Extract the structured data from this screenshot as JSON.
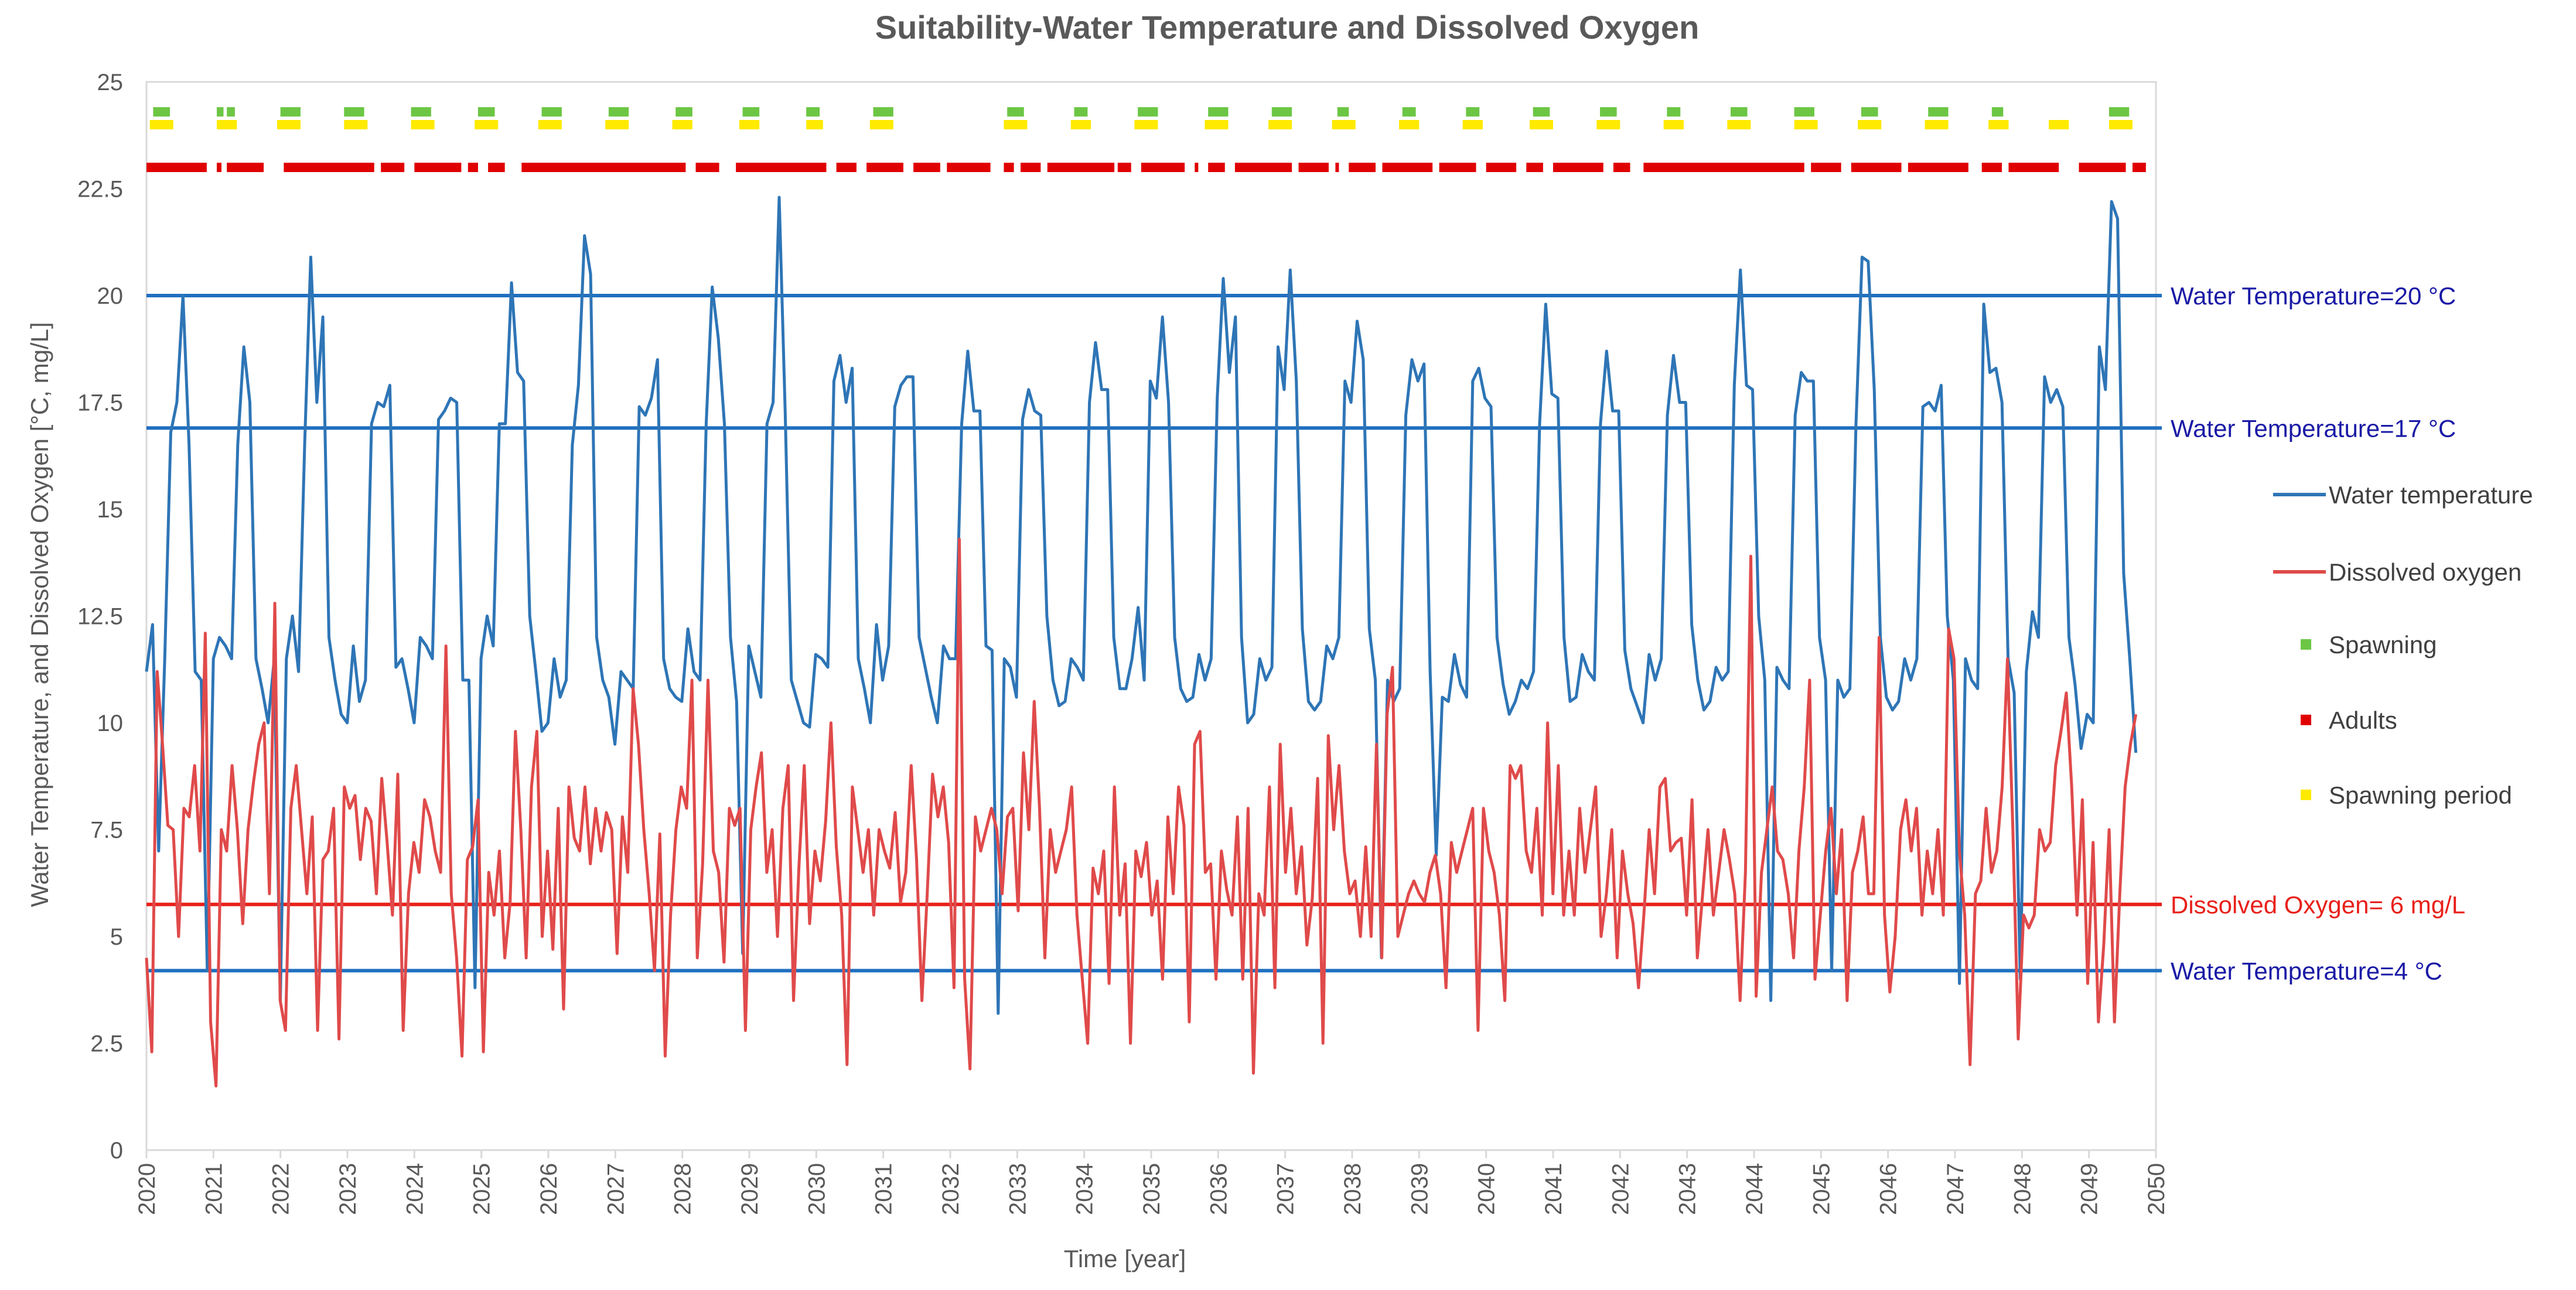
{
  "chart_data": {
    "type": "line",
    "title": "Suitability-Water Temperature and Dissolved Oxygen",
    "xlabel": "Time [year]",
    "ylabel": "Water Temperature, and Dissolved Oxygen [°C, mg/L]",
    "xlim": [
      2020,
      2050
    ],
    "ylim": [
      0,
      25
    ],
    "x_ticks": [
      "2020",
      "2021",
      "2022",
      "2023",
      "2024",
      "2025",
      "2026",
      "2027",
      "2028",
      "2029",
      "2030",
      "2031",
      "2032",
      "2033",
      "2034",
      "2035",
      "2036",
      "2037",
      "2038",
      "2039",
      "2040",
      "2041",
      "2042",
      "2043",
      "2044",
      "2045",
      "2046",
      "2047",
      "2048",
      "2049",
      "2050"
    ],
    "y_ticks": [
      "0",
      "2.5",
      "5",
      "7.5",
      "10",
      "12.5",
      "15",
      "17.5",
      "20",
      "22.5",
      "25"
    ],
    "legend": {
      "water_temperature": "Water temperature",
      "dissolved_oxygen": "Dissolved oxygen",
      "spawning": "Spawning",
      "adults": "Adults",
      "spawning_period": "Spawning period"
    },
    "reference_lines": [
      {
        "name": "Water Temperature=20 °C",
        "value": 20,
        "color": "#1F6FBF",
        "label_color": "#1A1AA6"
      },
      {
        "name": "Water Temperature=17 °C",
        "value": 16.9,
        "color": "#1F6FBF",
        "label_color": "#1A1AA6"
      },
      {
        "name": "Dissolved Oxygen= 6 mg/L",
        "value": 5.75,
        "color": "#E8201A",
        "label_color": "#E8201A"
      },
      {
        "name": "Water Temperature=4 °C",
        "value": 4.2,
        "color": "#1F6FBF",
        "label_color": "#1A1AA6"
      }
    ],
    "series": [
      {
        "name": "Water temperature",
        "color": "#2E75B6",
        "x_start": 2020,
        "x_end": 2049.7,
        "values": [
          11.2,
          12.3,
          7.0,
          11.5,
          16.8,
          17.5,
          20.0,
          16.5,
          11.2,
          11.0,
          4.2,
          11.5,
          12.0,
          11.8,
          11.5,
          16.5,
          18.8,
          17.5,
          11.5,
          10.8,
          10.0,
          11.5,
          3.5,
          11.5,
          12.5,
          11.2,
          16.5,
          20.9,
          17.5,
          19.5,
          12.0,
          11.0,
          10.2,
          10.0,
          11.8,
          10.5,
          11.0,
          17.0,
          17.5,
          17.4,
          17.9,
          11.3,
          11.5,
          10.8,
          10.0,
          12.0,
          11.8,
          11.5,
          17.1,
          17.3,
          17.6,
          17.5,
          11.0,
          11.0,
          3.8,
          11.5,
          12.5,
          11.8,
          17.0,
          17.0,
          20.3,
          18.2,
          18.0,
          12.5,
          11.2,
          9.8,
          10.0,
          11.5,
          10.6,
          11.0,
          16.5,
          17.9,
          21.4,
          20.5,
          12.0,
          11.0,
          10.6,
          9.5,
          11.2,
          11.0,
          10.8,
          17.4,
          17.2,
          17.6,
          18.5,
          11.5,
          10.8,
          10.6,
          10.5,
          12.2,
          11.2,
          11.0,
          17.0,
          20.2,
          19.0,
          17.0,
          12.0,
          10.5,
          4.6,
          11.8,
          11.2,
          10.6,
          17.0,
          17.5,
          22.3,
          17.2,
          11.0,
          10.5,
          10.0,
          9.9,
          11.6,
          11.5,
          11.3,
          18.0,
          18.6,
          17.5,
          18.3,
          11.5,
          10.8,
          10.0,
          12.3,
          11.0,
          11.8,
          17.4,
          17.9,
          18.1,
          18.1,
          12.0,
          11.3,
          10.6,
          10.0,
          11.8,
          11.5,
          11.5,
          17.0,
          18.7,
          17.3,
          17.3,
          11.8,
          11.7,
          3.2,
          11.5,
          11.3,
          10.6,
          17.1,
          17.8,
          17.3,
          17.2,
          12.5,
          11.0,
          10.4,
          10.5,
          11.5,
          11.3,
          11.0,
          17.5,
          18.9,
          17.8,
          17.8,
          12.0,
          10.8,
          10.8,
          11.5,
          12.7,
          11.0,
          18.0,
          17.6,
          19.5,
          17.5,
          12.0,
          10.8,
          10.5,
          10.6,
          11.6,
          11.0,
          11.5,
          17.6,
          20.4,
          18.2,
          19.5,
          12.0,
          10.0,
          10.2,
          11.5,
          11.0,
          11.3,
          18.8,
          17.8,
          20.6,
          18.0,
          12.2,
          10.5,
          10.3,
          10.5,
          11.8,
          11.5,
          12.0,
          18.0,
          17.5,
          19.4,
          18.5,
          12.2,
          11.0,
          4.5,
          11.0,
          10.5,
          10.8,
          17.2,
          18.5,
          18.0,
          18.4,
          11.2,
          6.9,
          10.6,
          10.5,
          11.6,
          10.9,
          10.6,
          18.0,
          18.3,
          17.6,
          17.4,
          12.0,
          10.9,
          10.2,
          10.5,
          11.0,
          10.8,
          11.2,
          17.0,
          19.8,
          17.7,
          17.6,
          12.0,
          10.5,
          10.6,
          11.6,
          11.2,
          11.0,
          17.0,
          18.7,
          17.3,
          17.3,
          11.7,
          10.8,
          10.4,
          10.0,
          11.6,
          11.0,
          11.5,
          17.2,
          18.6,
          17.5,
          17.5,
          12.3,
          11.0,
          10.3,
          10.5,
          11.3,
          11.0,
          11.2,
          17.9,
          20.6,
          17.9,
          17.8,
          12.5,
          11.0,
          3.5,
          11.3,
          11.0,
          10.8,
          17.2,
          18.2,
          18.0,
          18.0,
          12.0,
          11.0,
          4.2,
          11.0,
          10.6,
          10.8,
          17.0,
          20.9,
          20.8,
          17.8,
          12.0,
          10.6,
          10.3,
          10.5,
          11.5,
          11.0,
          11.5,
          17.4,
          17.5,
          17.3,
          17.9,
          12.5,
          11.0,
          3.9,
          11.5,
          11.0,
          10.8,
          19.8,
          18.2,
          18.3,
          17.5,
          11.5,
          10.7,
          4.0,
          11.2,
          12.6,
          12.0,
          18.1,
          17.5,
          17.8,
          17.4,
          12.0,
          10.9,
          9.4,
          10.2,
          10.0,
          18.8,
          17.8,
          22.2,
          21.8,
          13.5,
          11.5,
          9.3
        ]
      },
      {
        "name": "Dissolved oxygen",
        "color": "#E04A4A",
        "x_start": 2020,
        "x_end": 2049.7,
        "values": [
          4.5,
          2.3,
          11.2,
          9.5,
          7.6,
          7.5,
          5.0,
          8.0,
          7.8,
          9.0,
          7.0,
          12.1,
          3.0,
          1.5,
          7.5,
          7.0,
          9.0,
          7.5,
          5.3,
          7.5,
          8.6,
          9.5,
          10.0,
          6.0,
          12.8,
          3.5,
          2.8,
          8.0,
          9.0,
          7.5,
          6.0,
          7.8,
          2.8,
          6.8,
          7.0,
          8.0,
          2.6,
          8.5,
          8.0,
          8.3,
          6.8,
          8.0,
          7.7,
          6.0,
          8.7,
          7.2,
          5.5,
          8.8,
          2.8,
          6.0,
          7.2,
          6.5,
          8.2,
          7.8,
          7.0,
          6.5,
          11.8,
          6.0,
          4.5,
          2.2,
          6.8,
          7.1,
          8.2,
          2.3,
          6.5,
          5.5,
          7.0,
          4.5,
          5.8,
          9.8,
          7.5,
          4.5,
          8.5,
          9.8,
          5.0,
          7.0,
          4.7,
          8.0,
          3.3,
          8.5,
          7.3,
          7.0,
          8.5,
          6.7,
          8.0,
          7.0,
          7.9,
          7.5,
          4.6,
          7.8,
          6.5,
          10.8,
          9.5,
          7.5,
          6.0,
          4.2,
          7.4,
          2.2,
          5.5,
          7.5,
          8.5,
          8.0,
          11.0,
          4.5,
          6.7,
          11.0,
          7.0,
          6.5,
          4.4,
          8.0,
          7.6,
          8.0,
          2.8,
          7.5,
          8.5,
          9.3,
          6.5,
          7.5,
          5.0,
          8.0,
          9.0,
          3.5,
          6.6,
          9.0,
          5.3,
          7.0,
          6.3,
          7.7,
          10.0,
          7.1,
          5.5,
          2.0,
          8.5,
          7.5,
          6.5,
          7.5,
          5.5,
          7.5,
          7.0,
          6.6,
          7.9,
          5.8,
          6.5,
          9.0,
          6.8,
          3.5,
          6.0,
          8.8,
          7.8,
          8.5,
          7.2,
          3.8,
          14.3,
          4.0,
          1.9,
          7.8,
          7.0,
          7.5,
          8.0,
          7.5,
          6.0,
          7.8,
          8.0,
          5.6,
          9.3,
          7.5,
          10.5,
          8.0,
          4.5,
          7.5,
          6.5,
          7.0,
          7.5,
          8.5,
          5.5,
          4.0,
          2.5,
          6.6,
          6.0,
          7.0,
          3.9,
          8.5,
          5.5,
          6.7,
          2.5,
          7.0,
          6.4,
          7.2,
          5.5,
          6.3,
          4.0,
          7.8,
          6.0,
          8.5,
          7.6,
          3.0,
          9.5,
          9.8,
          6.5,
          6.7,
          4.0,
          7.0,
          6.1,
          5.5,
          7.8,
          4.0,
          8.0,
          1.8,
          6.0,
          5.5,
          8.5,
          3.8,
          9.5,
          6.5,
          8.0,
          6.0,
          7.1,
          4.8,
          5.9,
          8.7,
          2.5,
          9.7,
          7.5,
          9.0,
          7.0,
          6.0,
          6.3,
          5.0,
          7.1,
          5.0,
          9.5,
          4.5,
          10.2,
          11.3,
          5.0,
          5.5,
          6.0,
          6.3,
          6.0,
          5.8,
          6.5,
          6.9,
          6.0,
          3.8,
          7.2,
          6.5,
          7.0,
          7.5,
          8.0,
          2.8,
          8.0,
          7.0,
          6.5,
          5.5,
          3.5,
          9.0,
          8.7,
          9.0,
          7.0,
          6.5,
          8.0,
          5.5,
          10.0,
          6.0,
          9.0,
          5.5,
          7.0,
          5.5,
          8.0,
          6.5,
          7.5,
          8.5,
          5.0,
          6.0,
          7.5,
          4.5,
          7.0,
          6.0,
          5.3,
          3.8,
          5.5,
          7.5,
          6.0,
          8.5,
          8.7,
          7.0,
          7.2,
          7.3,
          5.5,
          8.2,
          4.5,
          6.0,
          7.5,
          5.5,
          6.5,
          7.5,
          6.8,
          6.0,
          3.5,
          6.5,
          13.9,
          3.6,
          6.5,
          7.5,
          8.5,
          7.0,
          6.8,
          6.0,
          4.5,
          7.0,
          8.5,
          11.0,
          4.0,
          5.5,
          7.0,
          8.0,
          6.0,
          7.5,
          3.5,
          6.5,
          7.0,
          7.8,
          6.0,
          6.0,
          12.0,
          5.5,
          3.7,
          5.0,
          7.5,
          8.2,
          7.0,
          8.0,
          5.5,
          7.0,
          6.0,
          7.5,
          5.5,
          12.2,
          11.5,
          7.0,
          5.5,
          2.0,
          6.0,
          6.3,
          8.0,
          6.5,
          7.0,
          8.5,
          11.5,
          7.5,
          2.6,
          5.5,
          5.2,
          5.5,
          7.5,
          7.0,
          7.2,
          9.0,
          9.8,
          10.7,
          8.5,
          5.5,
          8.2,
          3.9,
          7.2,
          3.0,
          4.8,
          7.5,
          3.0,
          6.0,
          8.5,
          9.5,
          10.2
        ]
      }
    ],
    "markers": {
      "spawning": {
        "color": "#6CC644",
        "y": 24.3,
        "ranges": [
          [
            2020.1,
            2020.35
          ],
          [
            2021.05,
            2021.15
          ],
          [
            2021.2,
            2021.32
          ],
          [
            2022.0,
            2022.3
          ],
          [
            2022.95,
            2023.25
          ],
          [
            2023.95,
            2024.25
          ],
          [
            2024.95,
            2025.2
          ],
          [
            2025.9,
            2026.2
          ],
          [
            2026.9,
            2027.2
          ],
          [
            2027.9,
            2028.15
          ],
          [
            2028.9,
            2029.15
          ],
          [
            2029.85,
            2030.05
          ],
          [
            2030.85,
            2031.15
          ],
          [
            2032.85,
            2033.1
          ],
          [
            2033.85,
            2034.05
          ],
          [
            2034.8,
            2035.1
          ],
          [
            2035.85,
            2036.15
          ],
          [
            2036.8,
            2037.1
          ],
          [
            2037.78,
            2037.95
          ],
          [
            2038.75,
            2038.95
          ],
          [
            2039.7,
            2039.9
          ],
          [
            2040.7,
            2040.95
          ],
          [
            2041.7,
            2041.95
          ],
          [
            2042.7,
            2042.9
          ],
          [
            2043.65,
            2043.9
          ],
          [
            2044.6,
            2044.9
          ],
          [
            2045.6,
            2045.85
          ],
          [
            2046.6,
            2046.9
          ],
          [
            2047.55,
            2047.72
          ],
          [
            2049.3,
            2049.6
          ]
        ]
      },
      "spawning_period": {
        "color": "#FFEA00",
        "y": 24.0,
        "ranges": [
          [
            2020.05,
            2020.4
          ],
          [
            2021.05,
            2021.35
          ],
          [
            2021.95,
            2022.3
          ],
          [
            2022.95,
            2023.3
          ],
          [
            2023.95,
            2024.3
          ],
          [
            2024.9,
            2025.25
          ],
          [
            2025.85,
            2026.2
          ],
          [
            2026.85,
            2027.2
          ],
          [
            2027.85,
            2028.15
          ],
          [
            2028.85,
            2029.15
          ],
          [
            2029.85,
            2030.1
          ],
          [
            2030.8,
            2031.15
          ],
          [
            2032.8,
            2033.15
          ],
          [
            2033.8,
            2034.1
          ],
          [
            2034.75,
            2035.1
          ],
          [
            2035.8,
            2036.15
          ],
          [
            2036.75,
            2037.1
          ],
          [
            2037.7,
            2038.05
          ],
          [
            2038.7,
            2039.0
          ],
          [
            2039.65,
            2039.95
          ],
          [
            2040.65,
            2041.0
          ],
          [
            2041.65,
            2042.0
          ],
          [
            2042.65,
            2042.95
          ],
          [
            2043.6,
            2043.95
          ],
          [
            2044.6,
            2044.95
          ],
          [
            2045.55,
            2045.9
          ],
          [
            2046.55,
            2046.9
          ],
          [
            2047.5,
            2047.8
          ],
          [
            2048.4,
            2048.7
          ],
          [
            2049.3,
            2049.65
          ]
        ]
      },
      "adults": {
        "color": "#E00000",
        "y": 23.0,
        "ranges": [
          [
            2020.0,
            2020.9
          ],
          [
            2021.05,
            2021.12
          ],
          [
            2021.2,
            2021.75
          ],
          [
            2022.05,
            2023.4
          ],
          [
            2023.5,
            2023.85
          ],
          [
            2024.0,
            2024.7
          ],
          [
            2024.8,
            2024.95
          ],
          [
            2025.1,
            2025.35
          ],
          [
            2025.6,
            2028.05
          ],
          [
            2028.2,
            2028.55
          ],
          [
            2028.8,
            2030.15
          ],
          [
            2030.3,
            2030.6
          ],
          [
            2030.75,
            2031.3
          ],
          [
            2031.45,
            2031.85
          ],
          [
            2031.95,
            2032.6
          ],
          [
            2032.8,
            2032.95
          ],
          [
            2033.05,
            2033.35
          ],
          [
            2033.45,
            2034.45
          ],
          [
            2034.5,
            2034.7
          ],
          [
            2034.85,
            2035.5
          ],
          [
            2035.65,
            2035.7
          ],
          [
            2035.85,
            2036.1
          ],
          [
            2036.25,
            2037.1
          ],
          [
            2037.2,
            2037.65
          ],
          [
            2037.75,
            2037.8
          ],
          [
            2037.95,
            2038.35
          ],
          [
            2038.45,
            2039.2
          ],
          [
            2039.3,
            2039.85
          ],
          [
            2040.0,
            2040.45
          ],
          [
            2040.6,
            2040.85
          ],
          [
            2041.0,
            2041.75
          ],
          [
            2041.9,
            2042.15
          ],
          [
            2042.35,
            2044.75
          ],
          [
            2044.85,
            2045.3
          ],
          [
            2045.45,
            2046.2
          ],
          [
            2046.3,
            2047.2
          ],
          [
            2047.4,
            2047.7
          ],
          [
            2047.8,
            2048.55
          ],
          [
            2048.85,
            2049.55
          ],
          [
            2049.65,
            2049.85
          ]
        ]
      }
    }
  }
}
